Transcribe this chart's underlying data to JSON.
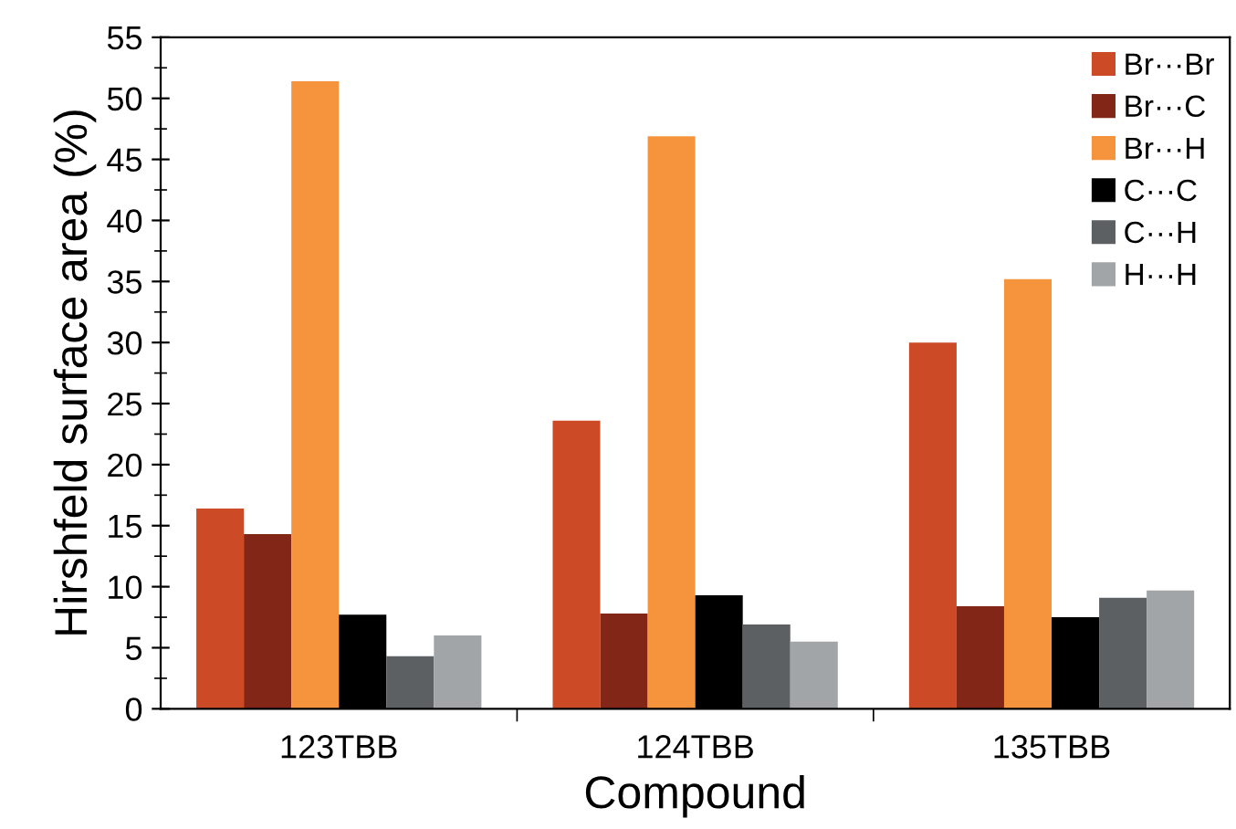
{
  "chart_data": {
    "type": "bar",
    "xlabel": "Compound",
    "ylabel": "Hirshfeld surface area (%)",
    "categories": [
      "123TBB",
      "124TBB",
      "135TBB"
    ],
    "series": [
      {
        "name": "Br···Br",
        "color": "#cc4a26",
        "values": [
          16.4,
          23.6,
          30.0
        ]
      },
      {
        "name": "Br···C",
        "color": "#822717",
        "values": [
          14.3,
          7.8,
          8.4
        ]
      },
      {
        "name": "Br···H",
        "color": "#f5943c",
        "values": [
          51.4,
          46.9,
          35.2
        ]
      },
      {
        "name": "C···C",
        "color": "#000000",
        "values": [
          7.7,
          9.3,
          7.5
        ]
      },
      {
        "name": "C···H",
        "color": "#5c6063",
        "values": [
          4.3,
          6.9,
          9.1
        ]
      },
      {
        "name": "H···H",
        "color": "#a2a5a8",
        "values": [
          6.0,
          5.5,
          9.7
        ]
      }
    ],
    "ylim": [
      0,
      55
    ],
    "yticks": [
      0,
      5,
      10,
      15,
      20,
      25,
      30,
      35,
      40,
      45,
      50,
      55
    ],
    "grid": false,
    "legend": "top right"
  }
}
